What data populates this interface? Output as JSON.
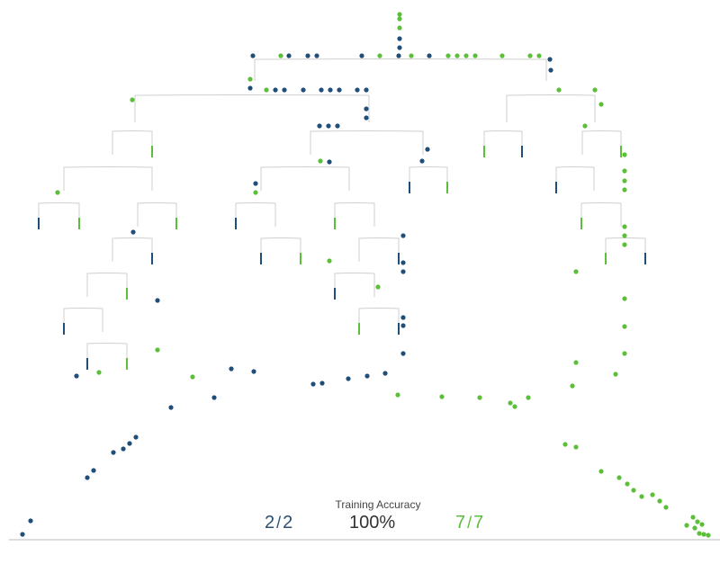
{
  "colors": {
    "blue": "#1f4e79",
    "green": "#5cbf3a",
    "line": "#cfcfcf",
    "baseline": "#bdbdbd"
  },
  "accuracy": {
    "title": "Training Accuracy",
    "blue_correct": "2",
    "blue_total": "2",
    "percent": "100%",
    "green_correct": "7",
    "green_total": "7"
  }
}
